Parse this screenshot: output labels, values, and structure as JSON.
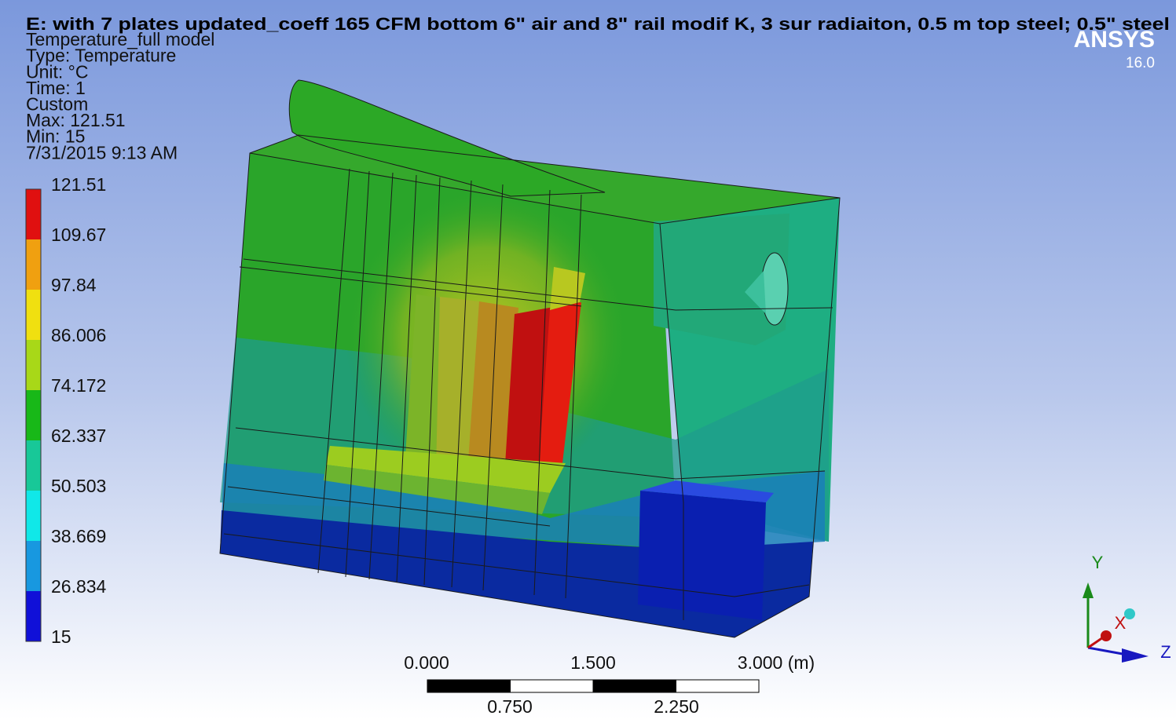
{
  "header": {
    "title": "E: with 7 plates updated_coeff 165 CFM bottom 6\" air and 8\" rail modif K, 3 sur radiaiton, 0.5 m top steel; 0.5\" steel"
  },
  "info": [
    "Temperature_full model",
    "Type: Temperature",
    "Unit: °C",
    "Time: 1",
    "Custom",
    "Max: 121.51",
    "Min: 15",
    "7/31/2015 9:13 AM"
  ],
  "logo": {
    "name": "ANSYS",
    "version": "16.0"
  },
  "legend": {
    "labels": [
      "121.51",
      "109.67",
      "97.84",
      "86.006",
      "74.172",
      "62.337",
      "50.503",
      "38.669",
      "26.834",
      "15"
    ],
    "colors": [
      "#e01010",
      "#f0a010",
      "#f0e010",
      "#a8d818",
      "#18b818",
      "#18c898",
      "#10e8e8",
      "#1898e0",
      "#1010d8"
    ]
  },
  "scale_bar": {
    "top_labels": [
      "0.000",
      "1.500",
      "3.000 (m)"
    ],
    "bottom_labels": [
      "0.750",
      "2.250"
    ]
  },
  "triad": {
    "y": "Y",
    "x": "X",
    "z": "Z"
  }
}
